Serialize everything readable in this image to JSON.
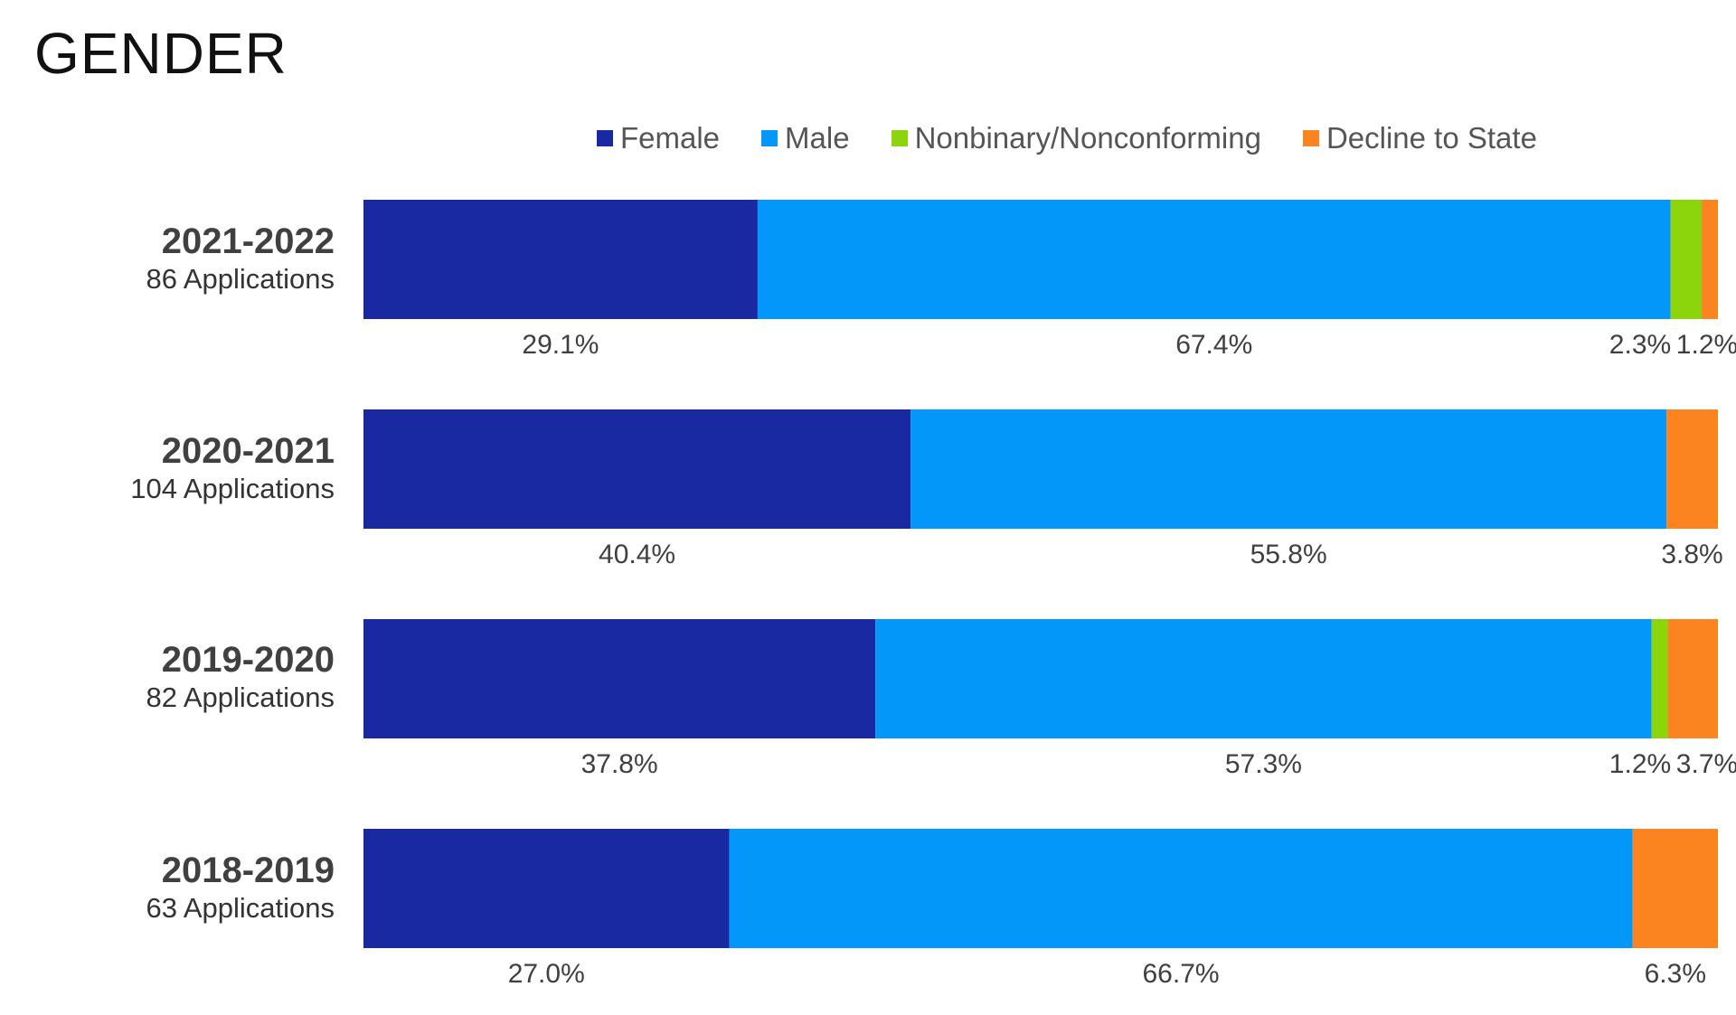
{
  "title": "GENDER",
  "legend": [
    {
      "label": "Female",
      "color": "#1829A1"
    },
    {
      "label": "Male",
      "color": "#0397FA"
    },
    {
      "label": "Nonbinary/Nonconforming",
      "color": "#8CD50C"
    },
    {
      "label": "Decline to State",
      "color": "#FC8420"
    }
  ],
  "rows": [
    {
      "year": "2021-2022",
      "apps": "86 Applications"
    },
    {
      "year": "2020-2021",
      "apps": "104 Applications"
    },
    {
      "year": "2019-2020",
      "apps": "82 Applications"
    },
    {
      "year": "2018-2019",
      "apps": "63 Applications"
    }
  ],
  "chart_data": {
    "type": "bar",
    "orientation": "horizontal",
    "stacked": true,
    "percent": true,
    "title": "GENDER",
    "categories": [
      "2021-2022",
      "2020-2021",
      "2019-2020",
      "2018-2019"
    ],
    "category_sublabels": [
      "86 Applications",
      "104 Applications",
      "82 Applications",
      "63 Applications"
    ],
    "xlim": [
      0,
      100
    ],
    "legend_position": "top",
    "grid": false,
    "series": [
      {
        "name": "Female",
        "color": "#1829A1",
        "values": [
          29.1,
          40.4,
          37.8,
          27.0
        ],
        "labels": [
          "29.1%",
          "40.4%",
          "37.8%",
          "27.0%"
        ]
      },
      {
        "name": "Male",
        "color": "#0397FA",
        "values": [
          67.4,
          55.8,
          57.3,
          66.7
        ],
        "labels": [
          "67.4%",
          "55.8%",
          "57.3%",
          "66.7%"
        ]
      },
      {
        "name": "Nonbinary/Nonconforming",
        "color": "#8CD50C",
        "values": [
          2.3,
          0,
          1.2,
          0
        ],
        "labels": [
          "2.3%",
          "",
          "1.2%",
          ""
        ]
      },
      {
        "name": "Decline to State",
        "color": "#FC8420",
        "values": [
          1.2,
          3.8,
          3.7,
          6.3
        ],
        "labels": [
          "1.2%",
          "3.8%",
          "3.7%",
          "6.3%"
        ]
      }
    ]
  }
}
